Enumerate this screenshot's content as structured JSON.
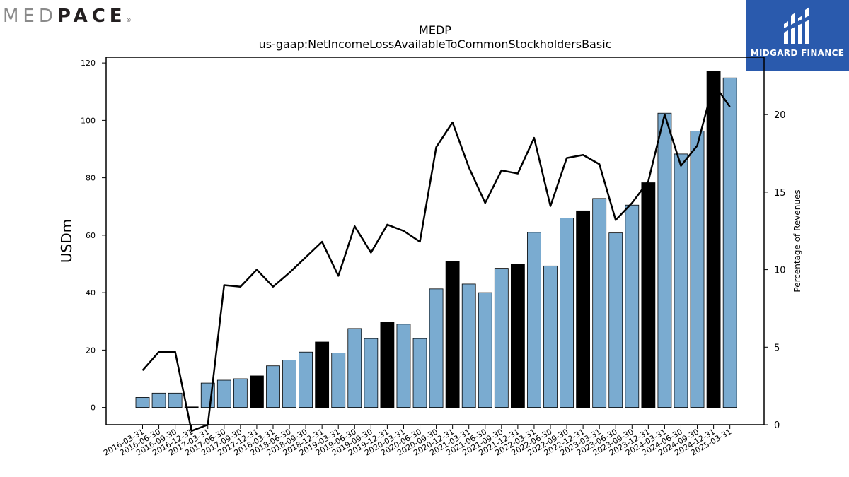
{
  "logo_left": {
    "light": "MED",
    "dark_start": "P",
    "dark_a": "A",
    "dark_end": "CE",
    "reg": "®"
  },
  "logo_right": {
    "text": "MIDGARD FINANCE",
    "color": "#2a5aad",
    "icon": "midgard-m-icon"
  },
  "chart_data": {
    "type": "bar",
    "title": "MEDP",
    "subtitle": "us-gaap:NetIncomeLossAvailableToCommonStockholdersBasic",
    "ylabel": "USDm",
    "y2label": "Percentage of Revenues",
    "ylim": [
      -6,
      122
    ],
    "y2lim": [
      0,
      23.7
    ],
    "yticks": [
      0,
      20,
      40,
      60,
      80,
      100,
      120
    ],
    "y2ticks": [
      0,
      5,
      10,
      15,
      20
    ],
    "bar_color": "#7aabd0",
    "highlight_color": "#000000",
    "line_color": "#000000",
    "categories": [
      "2016-03-31",
      "2016-06-30",
      "2016-09-30",
      "2016-12-31",
      "2017-03-31",
      "2017-06-30",
      "2017-09-30",
      "2017-12-31",
      "2018-03-31",
      "2018-06-30",
      "2018-09-30",
      "2018-12-31",
      "2019-03-31",
      "2019-06-30",
      "2019-09-30",
      "2019-12-31",
      "2020-03-31",
      "2020-06-30",
      "2020-09-30",
      "2020-12-31",
      "2021-03-31",
      "2021-06-30",
      "2021-09-30",
      "2021-12-31",
      "2022-03-31",
      "2022-06-30",
      "2022-09-30",
      "2022-12-31",
      "2023-03-31",
      "2023-06-30",
      "2023-09-30",
      "2023-12-31",
      "2024-03-31",
      "2024-06-30",
      "2024-09-30",
      "2024-12-31",
      "2025-03-31"
    ],
    "highlighted": [
      false,
      false,
      false,
      false,
      false,
      false,
      false,
      true,
      false,
      false,
      false,
      true,
      false,
      false,
      false,
      true,
      false,
      false,
      false,
      true,
      false,
      false,
      false,
      true,
      false,
      false,
      false,
      true,
      false,
      false,
      false,
      true,
      false,
      false,
      false,
      true,
      false
    ],
    "series": [
      {
        "name": "",
        "axis": "left",
        "kind": "bar",
        "values": [
          3.5,
          5,
          5,
          0,
          8.5,
          9.5,
          10,
          11,
          14.5,
          16.5,
          19.3,
          22.8,
          19,
          27.5,
          24,
          29.8,
          29,
          24,
          41.3,
          50.8,
          43,
          40,
          48.5,
          50,
          61,
          49.3,
          66,
          68.5,
          72.8,
          60.8,
          70.5,
          78.3,
          102.5,
          88.3,
          96.3,
          117,
          114.8
        ]
      },
      {
        "name": "",
        "axis": "right",
        "kind": "line",
        "values": [
          3.5,
          4.7,
          4.7,
          -0.4,
          0,
          9,
          8.9,
          10,
          8.9,
          9.8,
          10.8,
          11.8,
          9.6,
          12.8,
          11.1,
          12.9,
          12.5,
          11.8,
          17.9,
          19.5,
          16.6,
          14.3,
          16.4,
          16.2,
          18.5,
          14.1,
          17.2,
          17.4,
          16.8,
          13.2,
          14.3,
          15.7,
          20,
          16.7,
          18,
          22,
          20.5
        ]
      }
    ]
  }
}
